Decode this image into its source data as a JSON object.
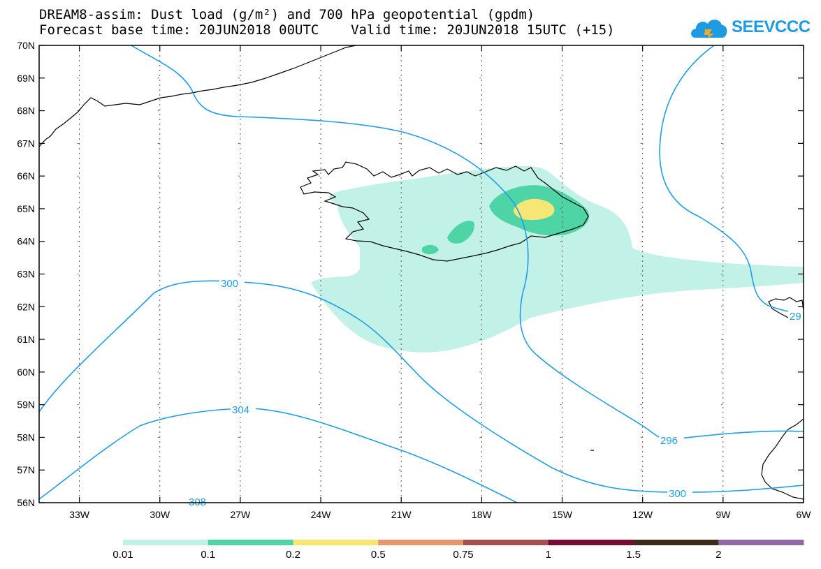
{
  "header": {
    "title_line1": "DREAM8-assim: Dust load (g/m²) and 700 hPa geopotential (gpdm)",
    "title_line2": "Forecast base time: 20JUN2018 00UTC    Valid time: 20JUN2018 15UTC (+15)"
  },
  "logo": {
    "text": "SEEVCCC",
    "icon": "cloud-icon",
    "color": "#1e9be0"
  },
  "map": {
    "projection": "lat-lon",
    "lon_range": [
      -34.5,
      -6
    ],
    "lat_range": [
      56,
      70
    ],
    "lat_labels": [
      "70N",
      "69N",
      "68N",
      "67N",
      "66N",
      "65N",
      "64N",
      "63N",
      "62N",
      "61N",
      "60N",
      "59N",
      "58N",
      "57N",
      "56N"
    ],
    "lon_labels": [
      "33W",
      "30W",
      "27W",
      "24W",
      "21W",
      "18W",
      "15W",
      "12W",
      "9W",
      "6W"
    ],
    "gridlines": "dotted",
    "contour_color": "#1f9de6",
    "contour_labels": [
      "300",
      "304",
      "308",
      "296",
      "300",
      "29"
    ]
  },
  "colorbar": {
    "labels": [
      "0.01",
      "0.1",
      "0.2",
      "0.5",
      "0.75",
      "1",
      "1.5",
      "2"
    ],
    "colors": [
      "#c2f1e8",
      "#4fd4a6",
      "#f6e676",
      "#e6966e",
      "#a55050",
      "#7a0a33",
      "#3e2a1a",
      "#9168a8"
    ]
  }
}
